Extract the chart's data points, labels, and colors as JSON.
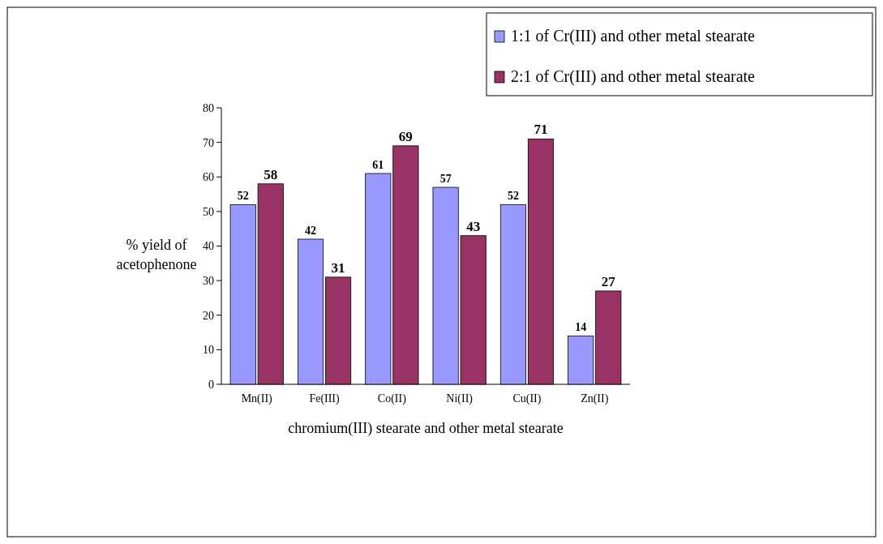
{
  "chart_data": {
    "type": "bar",
    "xlabel": "chromium(III) stearate and other metal stearate",
    "ylabel": "% yield of acetophenone",
    "categories": [
      "Mn(II)",
      "Fe(III)",
      "Co(II)",
      "Ni(II)",
      "Cu(II)",
      "Zn(II)"
    ],
    "series": [
      {
        "name": "1:1 of Cr(III) and other metal stearate",
        "color": "#9999ff",
        "values": [
          52,
          42,
          61,
          57,
          52,
          14
        ]
      },
      {
        "name": "2:1 of Cr(III) and other metal stearate",
        "color": "#993366",
        "values": [
          58,
          31,
          69,
          43,
          71,
          27
        ]
      }
    ],
    "ylim": [
      0,
      80
    ],
    "yticks": [
      0,
      10,
      20,
      30,
      40,
      50,
      60,
      70,
      80
    ],
    "data_labels": true,
    "legend": "top right",
    "grid": false
  }
}
